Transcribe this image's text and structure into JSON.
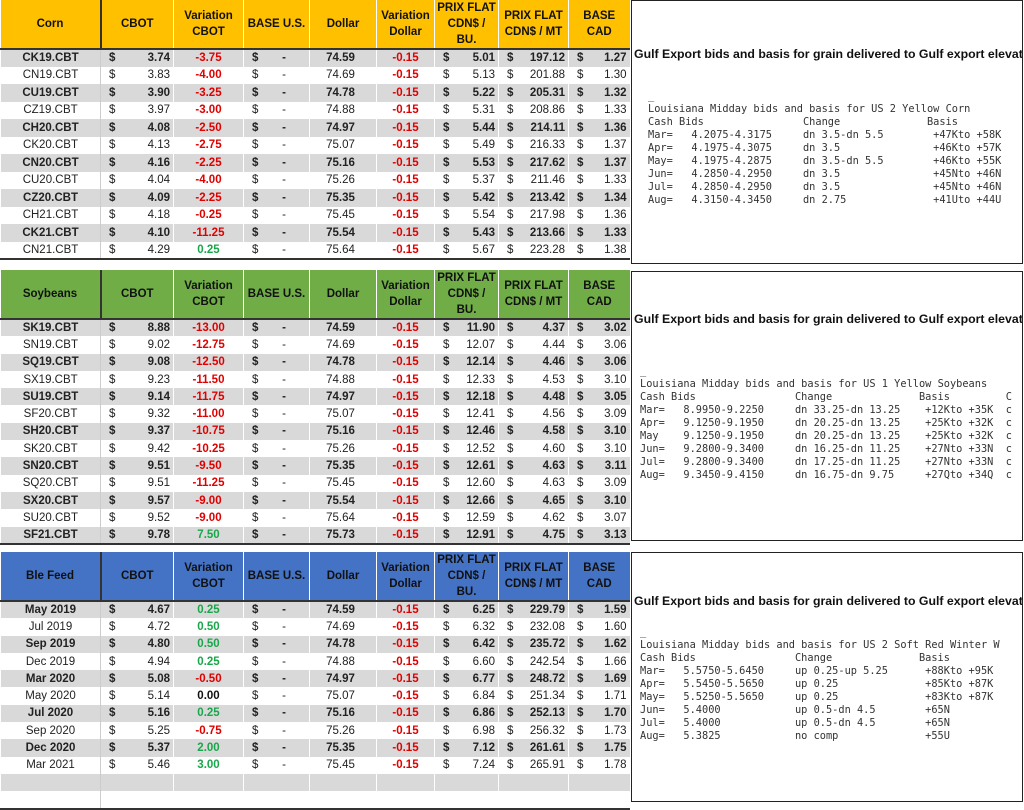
{
  "currency_symbol": "$",
  "columns": [
    "CBOT",
    "Variation CBOT",
    "BASE U.S.",
    "Dollar",
    "Variation Dollar",
    "PRIX FLAT CDN$ / BU.",
    "PRIX FLAT CDN$ / MT",
    "BASE CAD"
  ],
  "tables": [
    {
      "label": "Corn",
      "header_color": "#ffc000",
      "rows": [
        [
          "CK19.CBT",
          "3.74",
          "-3.75",
          "-",
          "74.59",
          "-0.15",
          "5.01",
          "197.12",
          "1.27"
        ],
        [
          "CN19.CBT",
          "3.83",
          "-4.00",
          "-",
          "74.69",
          "-0.15",
          "5.13",
          "201.88",
          "1.30"
        ],
        [
          "CU19.CBT",
          "3.90",
          "-3.25",
          "-",
          "74.78",
          "-0.15",
          "5.22",
          "205.31",
          "1.32"
        ],
        [
          "CZ19.CBT",
          "3.97",
          "-3.00",
          "-",
          "74.88",
          "-0.15",
          "5.31",
          "208.86",
          "1.33"
        ],
        [
          "CH20.CBT",
          "4.08",
          "-2.50",
          "-",
          "74.97",
          "-0.15",
          "5.44",
          "214.11",
          "1.36"
        ],
        [
          "CK20.CBT",
          "4.13",
          "-2.75",
          "-",
          "75.07",
          "-0.15",
          "5.49",
          "216.33",
          "1.37"
        ],
        [
          "CN20.CBT",
          "4.16",
          "-2.25",
          "-",
          "75.16",
          "-0.15",
          "5.53",
          "217.62",
          "1.37"
        ],
        [
          "CU20.CBT",
          "4.04",
          "-4.00",
          "-",
          "75.26",
          "-0.15",
          "5.37",
          "211.46",
          "1.33"
        ],
        [
          "CZ20.CBT",
          "4.09",
          "-2.25",
          "-",
          "75.35",
          "-0.15",
          "5.42",
          "213.42",
          "1.34"
        ],
        [
          "CH21.CBT",
          "4.18",
          "-0.25",
          "-",
          "75.45",
          "-0.15",
          "5.54",
          "217.98",
          "1.36"
        ],
        [
          "CK21.CBT",
          "4.10",
          "-11.25",
          "-",
          "75.54",
          "-0.15",
          "5.43",
          "213.66",
          "1.33"
        ],
        [
          "CN21.CBT",
          "4.29",
          "0.25",
          "-",
          "75.64",
          "-0.15",
          "5.67",
          "223.28",
          "1.38"
        ]
      ]
    },
    {
      "label": "Soybeans",
      "header_color": "#70ad47",
      "rows": [
        [
          "SK19.CBT",
          "8.88",
          "-13.00",
          "-",
          "74.59",
          "-0.15",
          "11.90",
          "4.37",
          "3.02"
        ],
        [
          "SN19.CBT",
          "9.02",
          "-12.75",
          "-",
          "74.69",
          "-0.15",
          "12.07",
          "4.44",
          "3.06"
        ],
        [
          "SQ19.CBT",
          "9.08",
          "-12.50",
          "-",
          "74.78",
          "-0.15",
          "12.14",
          "4.46",
          "3.06"
        ],
        [
          "SX19.CBT",
          "9.23",
          "-11.50",
          "-",
          "74.88",
          "-0.15",
          "12.33",
          "4.53",
          "3.10"
        ],
        [
          "SU19.CBT",
          "9.14",
          "-11.75",
          "-",
          "74.97",
          "-0.15",
          "12.18",
          "4.48",
          "3.05"
        ],
        [
          "SF20.CBT",
          "9.32",
          "-11.00",
          "-",
          "75.07",
          "-0.15",
          "12.41",
          "4.56",
          "3.09"
        ],
        [
          "SH20.CBT",
          "9.37",
          "-10.75",
          "-",
          "75.16",
          "-0.15",
          "12.46",
          "4.58",
          "3.10"
        ],
        [
          "SK20.CBT",
          "9.42",
          "-10.25",
          "-",
          "75.26",
          "-0.15",
          "12.52",
          "4.60",
          "3.10"
        ],
        [
          "SN20.CBT",
          "9.51",
          "-9.50",
          "-",
          "75.35",
          "-0.15",
          "12.61",
          "4.63",
          "3.11"
        ],
        [
          "SQ20.CBT",
          "9.51",
          "-11.25",
          "-",
          "75.45",
          "-0.15",
          "12.60",
          "4.63",
          "3.09"
        ],
        [
          "SX20.CBT",
          "9.57",
          "-9.00",
          "-",
          "75.54",
          "-0.15",
          "12.66",
          "4.65",
          "3.10"
        ],
        [
          "SU20.CBT",
          "9.52",
          "-9.00",
          "-",
          "75.64",
          "-0.15",
          "12.59",
          "4.62",
          "3.07"
        ],
        [
          "SF21.CBT",
          "9.78",
          "7.50",
          "-",
          "75.73",
          "-0.15",
          "12.91",
          "4.75",
          "3.13"
        ]
      ]
    },
    {
      "label": "Ble Feed",
      "header_color": "#4472c4",
      "rows": [
        [
          "May 2019",
          "4.67",
          "0.25",
          "-",
          "74.59",
          "-0.15",
          "6.25",
          "229.79",
          "1.59"
        ],
        [
          "Jul 2019",
          "4.72",
          "0.50",
          "-",
          "74.69",
          "-0.15",
          "6.32",
          "232.08",
          "1.60"
        ],
        [
          "Sep 2019",
          "4.80",
          "0.50",
          "-",
          "74.78",
          "-0.15",
          "6.42",
          "235.72",
          "1.62"
        ],
        [
          "Dec 2019",
          "4.94",
          "0.25",
          "-",
          "74.88",
          "-0.15",
          "6.60",
          "242.54",
          "1.66"
        ],
        [
          "Mar 2020",
          "5.08",
          "-0.50",
          "-",
          "74.97",
          "-0.15",
          "6.77",
          "248.72",
          "1.69"
        ],
        [
          "May 2020",
          "5.14",
          "0.00",
          "-",
          "75.07",
          "-0.15",
          "6.84",
          "251.34",
          "1.71"
        ],
        [
          "Jul 2020",
          "5.16",
          "0.25",
          "-",
          "75.16",
          "-0.15",
          "6.86",
          "252.13",
          "1.70"
        ],
        [
          "Sep 2020",
          "5.25",
          "-0.75",
          "-",
          "75.26",
          "-0.15",
          "6.98",
          "256.32",
          "1.73"
        ],
        [
          "Dec 2020",
          "5.37",
          "2.00",
          "-",
          "75.35",
          "-0.15",
          "7.12",
          "261.61",
          "1.75"
        ],
        [
          "Mar 2021",
          "5.46",
          "3.00",
          "-",
          "75.45",
          "-0.15",
          "7.24",
          "265.91",
          "1.78"
        ]
      ]
    }
  ],
  "panels": [
    {
      "title": "Gulf Export bids and basis for grain delivered to Gulf export elevators",
      "heading": "Louisiana Midday bids and basis for US 2 Yellow Corn",
      "col_bids": "Cash Bids",
      "col_change": "Change",
      "col_basis": "Basis",
      "col_extra": "",
      "lines": [
        {
          "month": "Mar=",
          "bids": "4.2075-4.3175",
          "change": "dn 3.5-dn 5.5",
          "basis": "+47Kto +58K",
          "extra": ""
        },
        {
          "month": "Apr=",
          "bids": "4.1975-4.3075",
          "change": "dn 3.5",
          "basis": "+46Kto +57K",
          "extra": ""
        },
        {
          "month": "May=",
          "bids": "4.1975-4.2875",
          "change": "dn 3.5-dn 5.5",
          "basis": "+46Kto +55K",
          "extra": ""
        },
        {
          "month": "Jun=",
          "bids": "4.2850-4.2950",
          "change": "dn 3.5",
          "basis": "+45Nto +46N",
          "extra": ""
        },
        {
          "month": "Jul=",
          "bids": "4.2850-4.2950",
          "change": "dn 3.5",
          "basis": "+45Nto +46N",
          "extra": ""
        },
        {
          "month": "Aug=",
          "bids": "4.3150-4.3450",
          "change": "dn 2.75",
          "basis": "+41Uto +44U",
          "extra": ""
        }
      ]
    },
    {
      "title": "Gulf Export bids and basis for grain delivered to Gulf export elevators",
      "heading": "Louisiana Midday bids and basis for US 1 Yellow Soybeans",
      "col_bids": "Cash Bids",
      "col_change": "Change",
      "col_basis": "Basis",
      "col_extra": "C",
      "lines": [
        {
          "month": "Mar=",
          "bids": "8.9950-9.2250",
          "change": "dn 33.25-dn 13.25",
          "basis": "+12Kto +35K",
          "extra": "c"
        },
        {
          "month": "Apr=",
          "bids": "9.1250-9.1950",
          "change": "dn 20.25-dn 13.25",
          "basis": "+25Kto +32K",
          "extra": "c"
        },
        {
          "month": "May",
          "bids": "9.1250-9.1950",
          "change": "dn 20.25-dn 13.25",
          "basis": "+25Kto +32K",
          "extra": "c"
        },
        {
          "month": "Jun=",
          "bids": "9.2800-9.3400",
          "change": "dn 16.25-dn 11.25",
          "basis": "+27Nto +33N",
          "extra": "c"
        },
        {
          "month": "Jul=",
          "bids": "9.2800-9.3400",
          "change": "dn 17.25-dn 11.25",
          "basis": "+27Nto +33N",
          "extra": "c"
        },
        {
          "month": "Aug=",
          "bids": "9.3450-9.4150",
          "change": "dn 16.75-dn 9.75",
          "basis": "+27Qto +34Q",
          "extra": "c"
        }
      ]
    },
    {
      "title": "Gulf Export bids and basis for grain delivered to Gulf export elevators",
      "heading": "Louisiana Midday bids and basis for US 2 Soft Red Winter W",
      "col_bids": "Cash Bids",
      "col_change": "Change",
      "col_basis": "Basis",
      "col_extra": "",
      "lines": [
        {
          "month": "Mar=",
          "bids": "5.5750-5.6450",
          "change": "up 0.25-up 5.25",
          "basis": "+88Kto +95K",
          "extra": ""
        },
        {
          "month": "Apr=",
          "bids": "5.5450-5.5650",
          "change": "up 0.25",
          "basis": "+85Kto +87K",
          "extra": ""
        },
        {
          "month": "May=",
          "bids": "5.5250-5.5650",
          "change": "up 0.25",
          "basis": "+83Kto +87K",
          "extra": ""
        },
        {
          "month": "Jun=",
          "bids": "5.4000",
          "change": "up 0.5-dn 4.5",
          "basis": "+65N",
          "extra": ""
        },
        {
          "month": "Jul=",
          "bids": "5.4000",
          "change": "up 0.5-dn 4.5",
          "basis": "+65N",
          "extra": ""
        },
        {
          "month": "Aug=",
          "bids": "5.3825",
          "change": "no comp",
          "basis": "+55U",
          "extra": ""
        }
      ]
    }
  ]
}
